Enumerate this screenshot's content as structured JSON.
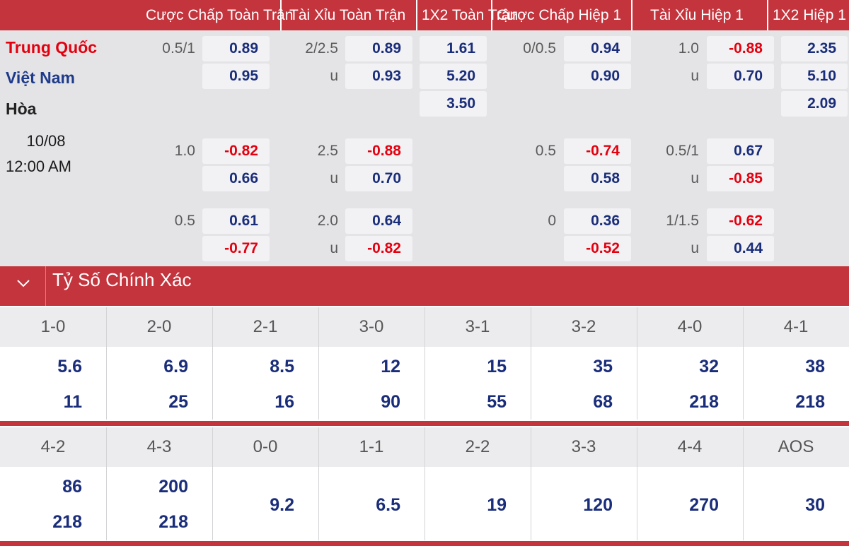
{
  "header": {
    "cols": [
      "Cược Chấp Toàn Trận",
      "Tài Xỉu Toàn Trận",
      "1X2 Toàn Trận",
      "Cược Chấp Hiệp 1",
      "Tài Xỉu Hiệp 1",
      "1X2 Hiệp 1"
    ]
  },
  "match": {
    "home": "Trung Quốc",
    "away": "Việt Nam",
    "draw": "Hòa",
    "date": "10/08",
    "time": "12:00 AM"
  },
  "odds_rows": [
    {
      "ah_ft": {
        "line": "0.5/1",
        "home": "0.89",
        "away": "0.95"
      },
      "ou_ft": {
        "line": "2/2.5",
        "under_label": "u",
        "over": "0.89",
        "under": "0.93"
      },
      "x12_ft": {
        "home": "1.61",
        "away": "5.20",
        "draw": "3.50"
      },
      "ah_h1": {
        "line": "0/0.5",
        "home": "0.94",
        "away": "0.90"
      },
      "ou_h1": {
        "line": "1.0",
        "under_label": "u",
        "over": "-0.88",
        "under": "0.70"
      },
      "x12_h1": {
        "home": "2.35",
        "away": "5.10",
        "draw": "2.09"
      }
    },
    {
      "ah_ft": {
        "line": "1.0",
        "home": "-0.82",
        "away": "0.66"
      },
      "ou_ft": {
        "line": "2.5",
        "under_label": "u",
        "over": "-0.88",
        "under": "0.70"
      },
      "ah_h1": {
        "line": "0.5",
        "home": "-0.74",
        "away": "0.58"
      },
      "ou_h1": {
        "line": "0.5/1",
        "under_label": "u",
        "over": "0.67",
        "under": "-0.85"
      }
    },
    {
      "ah_ft": {
        "line": "0.5",
        "home": "0.61",
        "away": "-0.77"
      },
      "ou_ft": {
        "line": "2.0",
        "under_label": "u",
        "over": "0.64",
        "under": "-0.82"
      },
      "ah_h1": {
        "line": "0",
        "home": "0.36",
        "away": "-0.52"
      },
      "ou_h1": {
        "line": "1/1.5",
        "under_label": "u",
        "over": "-0.62",
        "under": "0.44"
      }
    }
  ],
  "correct_score": {
    "title": "Tỷ Số Chính Xác",
    "rows": [
      {
        "cells": [
          {
            "score": "1-0",
            "home": "5.6",
            "away": "11"
          },
          {
            "score": "2-0",
            "home": "6.9",
            "away": "25"
          },
          {
            "score": "2-1",
            "home": "8.5",
            "away": "16"
          },
          {
            "score": "3-0",
            "home": "12",
            "away": "90"
          },
          {
            "score": "3-1",
            "home": "15",
            "away": "55"
          },
          {
            "score": "3-2",
            "home": "35",
            "away": "68"
          },
          {
            "score": "4-0",
            "home": "32",
            "away": "218"
          },
          {
            "score": "4-1",
            "home": "38",
            "away": "218"
          }
        ]
      },
      {
        "cells": [
          {
            "score": "4-2",
            "home": "86",
            "away": "218"
          },
          {
            "score": "4-3",
            "home": "200",
            "away": "218"
          },
          {
            "score": "0-0",
            "single": "9.2"
          },
          {
            "score": "1-1",
            "single": "6.5"
          },
          {
            "score": "2-2",
            "single": "19"
          },
          {
            "score": "3-3",
            "single": "120"
          },
          {
            "score": "4-4",
            "single": "270"
          },
          {
            "score": "AOS",
            "single": "30"
          }
        ]
      }
    ]
  }
}
